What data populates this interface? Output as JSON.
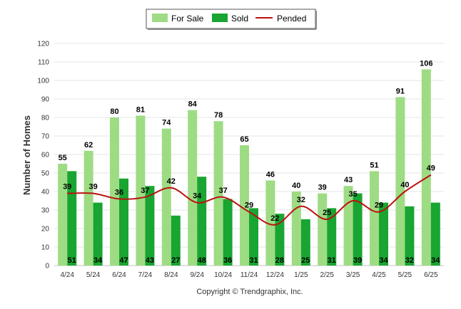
{
  "chart_data": {
    "type": "bar",
    "categories": [
      "4/24",
      "5/24",
      "6/24",
      "7/24",
      "8/24",
      "9/24",
      "10/24",
      "11/24",
      "12/24",
      "1/25",
      "2/25",
      "3/25",
      "4/25",
      "5/25",
      "6/25"
    ],
    "series": [
      {
        "name": "For Sale",
        "type": "bar",
        "color": "#9edc84",
        "values": [
          55,
          62,
          80,
          81,
          74,
          84,
          78,
          65,
          46,
          40,
          39,
          43,
          51,
          91,
          106
        ]
      },
      {
        "name": "Sold",
        "type": "bar",
        "color": "#19a531",
        "values": [
          51,
          34,
          47,
          43,
          27,
          48,
          36,
          31,
          28,
          25,
          31,
          39,
          34,
          32,
          34
        ]
      },
      {
        "name": "Pended",
        "type": "line",
        "color": "#bb1111",
        "values": [
          39,
          39,
          36,
          37,
          42,
          34,
          37,
          29,
          22,
          32,
          25,
          35,
          29,
          40,
          49
        ]
      }
    ],
    "ylabel": "Number of Homes",
    "ylim": [
      0,
      120
    ],
    "yticks": [
      0,
      10,
      20,
      30,
      40,
      50,
      60,
      70,
      80,
      90,
      100,
      110,
      120
    ],
    "grid": true,
    "legend_position": "top-center",
    "copyright": "Copyright © Trendgraphix, Inc."
  }
}
